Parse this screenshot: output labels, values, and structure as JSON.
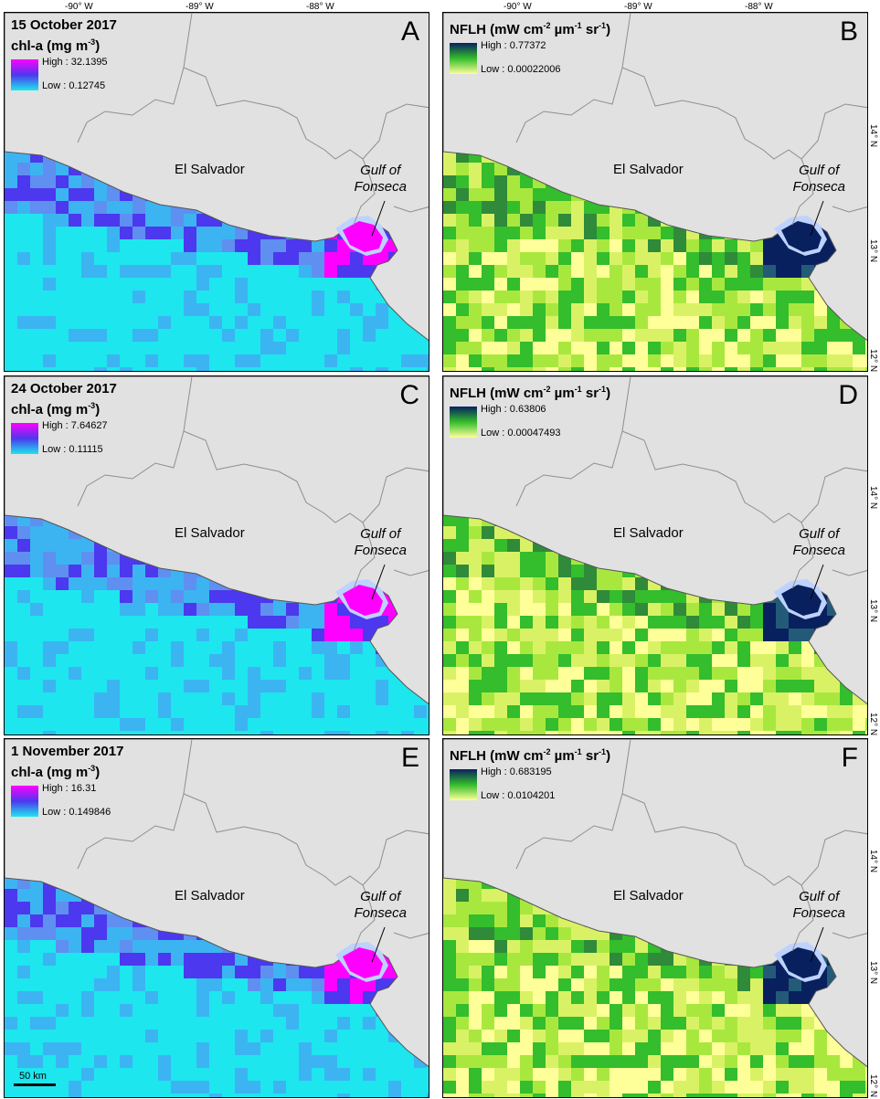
{
  "axes": {
    "longitude_labels": [
      "-90° W",
      "-89° W",
      "-88° W"
    ],
    "latitude_labels": [
      "14° N",
      "13° N",
      "12° N"
    ]
  },
  "colors": {
    "land": "#e1e1e1",
    "land_border": "#8f8f8f",
    "no_data": "#bed2ff",
    "chl_low": "#1ee6ee",
    "chl_mid": "#4c38ee",
    "chl_high": "#ff00ff",
    "nflh_low": "#ffff9a",
    "nflh_mid": "#34bd2c",
    "nflh_high": "#08205e"
  },
  "labels": {
    "country": "El Salvador",
    "gulf_line1": "Gulf of",
    "gulf_line2": "Fonseca",
    "scale_bar": "50 km"
  },
  "panels": [
    {
      "id": "A",
      "date": "15 October 2017",
      "variable": "chl-a (mg m",
      "unit_exp": "-3",
      "high": "High : 32.1395",
      "low": "Low : 0.12745"
    },
    {
      "id": "B",
      "date": "",
      "variable": "NFLH (mW cm",
      "unit_exp": "",
      "high": "High : 0.77372",
      "low": "Low : 0.00022006"
    },
    {
      "id": "C",
      "date": "24 October 2017",
      "variable": "chl-a (mg m",
      "unit_exp": "-3",
      "high": "High : 7.64627",
      "low": "Low : 0.11115"
    },
    {
      "id": "D",
      "date": "",
      "variable": "NFLH (mW cm",
      "unit_exp": "",
      "high": "High : 0.63806",
      "low": "Low : 0.00047493"
    },
    {
      "id": "E",
      "date": "1 November 2017",
      "variable": "chl-a (mg m",
      "unit_exp": "-3",
      "high": "High : 16.31",
      "low": "Low : 0.149846"
    },
    {
      "id": "F",
      "date": "",
      "variable": "NFLH (mW cm",
      "unit_exp": "",
      "high": "High : 0.683195",
      "low": "Low : 0.0104201"
    }
  ]
}
